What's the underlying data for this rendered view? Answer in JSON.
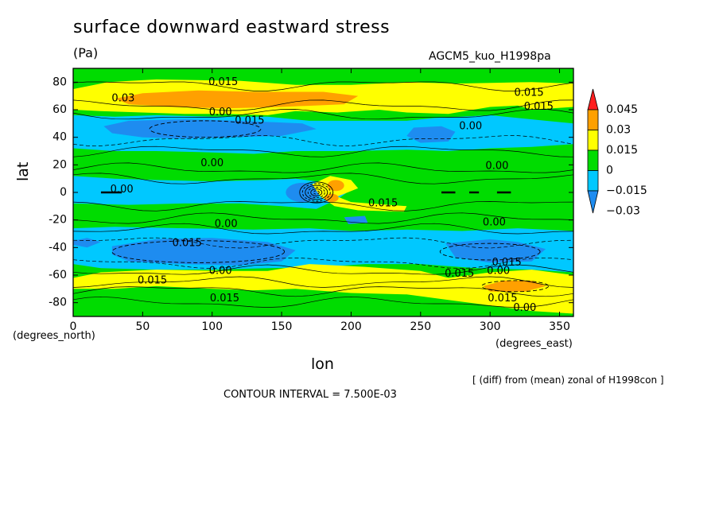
{
  "title": "surface downward eastward stress",
  "units": "(Pa)",
  "run_id": "AGCM5_kuo_H1998pa",
  "x_units": "(degrees_east)",
  "y_units": "(degrees_north)",
  "note": "[ (diff) from (mean) zonal of H1998con ]",
  "contour_interval": "CONTOUR INTERVAL = 7.500E-03",
  "chart_data": {
    "type": "heatmap",
    "title": "surface downward eastward stress",
    "xlabel": "lon",
    "ylabel": "lat",
    "xlim": [
      0,
      360
    ],
    "ylim": [
      -90,
      90
    ],
    "x_ticks": [
      0,
      50,
      100,
      150,
      200,
      250,
      300,
      350
    ],
    "y_ticks": [
      -80,
      -60,
      -40,
      -20,
      0,
      20,
      40,
      60,
      80
    ],
    "colorbar": {
      "levels": [
        "-0.03",
        "-0.015",
        "0",
        "0.015",
        "0.03",
        "0.045"
      ],
      "colors": [
        "#1e8cf0",
        "#00c8ff",
        "#00dc00",
        "#ffff00",
        "#ffa000",
        "#ff1e1e"
      ]
    },
    "contour_labels": [
      {
        "text": "0.015",
        "lon": 108,
        "lat": 80
      },
      {
        "text": "0.03",
        "lon": 36,
        "lat": 68
      },
      {
        "text": "0.015",
        "lon": 328,
        "lat": 72
      },
      {
        "text": "0.015",
        "lon": 335,
        "lat": 62
      },
      {
        "text": "0.00",
        "lon": 106,
        "lat": 58
      },
      {
        "text": "0.015",
        "lon": 127,
        "lat": 52
      },
      {
        "text": "0.00",
        "lon": 286,
        "lat": 48
      },
      {
        "text": "0.00",
        "lon": 100,
        "lat": 21
      },
      {
        "text": "0.00",
        "lon": 305,
        "lat": 19
      },
      {
        "text": "0.00",
        "lon": 35,
        "lat": 2
      },
      {
        "text": "0.015",
        "lon": 223,
        "lat": -8
      },
      {
        "text": "0.00",
        "lon": 110,
        "lat": -23
      },
      {
        "text": "0.00",
        "lon": 303,
        "lat": -22
      },
      {
        "text": "0.015",
        "lon": 82,
        "lat": -37
      },
      {
        "text": "0.015",
        "lon": 312,
        "lat": -51
      },
      {
        "text": "0.00",
        "lon": 106,
        "lat": -57
      },
      {
        "text": "0.00",
        "lon": 306,
        "lat": -57
      },
      {
        "text": "0.015",
        "lon": 278,
        "lat": -59
      },
      {
        "text": "0.015",
        "lon": 57,
        "lat": -64
      },
      {
        "text": "0.015",
        "lon": 109,
        "lat": -77
      },
      {
        "text": "0.015",
        "lon": 309,
        "lat": -77
      },
      {
        "text": "0.00",
        "lon": 325,
        "lat": -84
      }
    ]
  },
  "colors": {
    "neg2": "#1e8cf0",
    "neg1": "#00c8ff",
    "zero": "#00dc00",
    "pos1": "#ffff00",
    "pos2": "#ffa000",
    "pos3": "#ff1e1e"
  }
}
